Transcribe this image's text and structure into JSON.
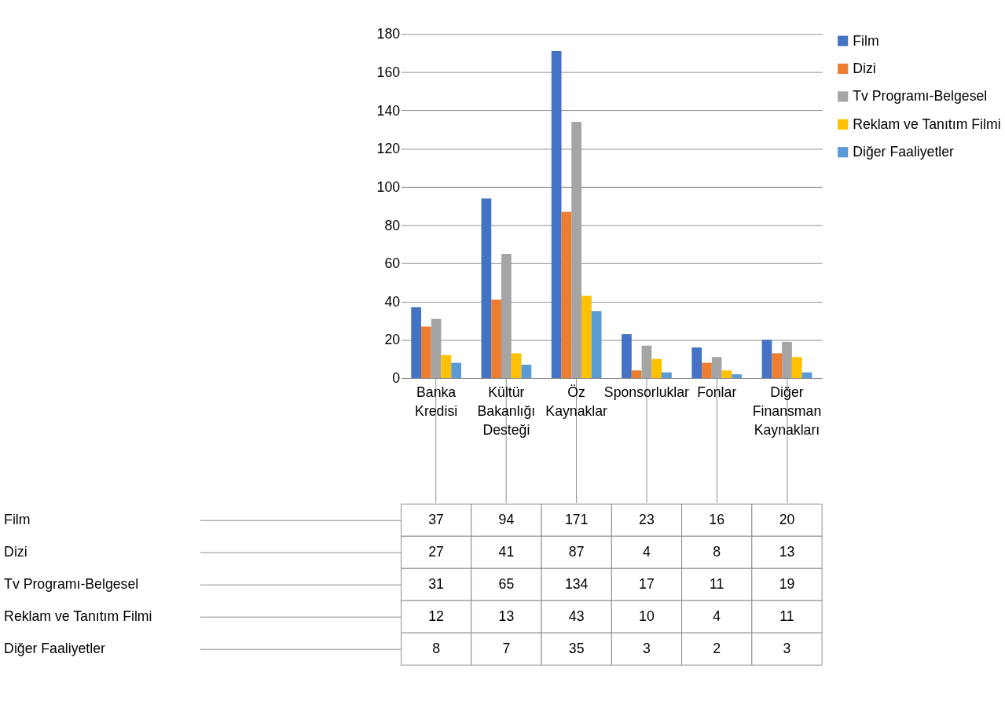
{
  "chart_data": {
    "type": "bar",
    "categories": [
      "Banka Kredisi",
      "Kültür Bakanlığı Desteği",
      "Öz Kaynaklar",
      "Sponsorluklar",
      "Fonlar",
      "Diğer Finansman Kaynakları"
    ],
    "series": [
      {
        "name": "Film",
        "color": "#4472c4",
        "values": [
          37,
          94,
          171,
          23,
          16,
          20
        ]
      },
      {
        "name": "Dizi",
        "color": "#ed7d31",
        "values": [
          27,
          41,
          87,
          4,
          8,
          13
        ]
      },
      {
        "name": "Tv Programı-Belgesel",
        "color": "#a5a5a5",
        "values": [
          31,
          65,
          134,
          17,
          11,
          19
        ]
      },
      {
        "name": "Reklam ve Tanıtım Filmi",
        "color": "#ffc000",
        "values": [
          12,
          13,
          43,
          10,
          4,
          11
        ]
      },
      {
        "name": "Diğer Faaliyetler",
        "color": "#5b9bd5",
        "values": [
          8,
          7,
          35,
          3,
          2,
          3
        ]
      }
    ],
    "ylim": [
      0,
      180
    ],
    "yticks": [
      0,
      20,
      40,
      60,
      80,
      100,
      120,
      140,
      160,
      180
    ],
    "grid": "y",
    "legend": "right",
    "data_labels": true
  }
}
